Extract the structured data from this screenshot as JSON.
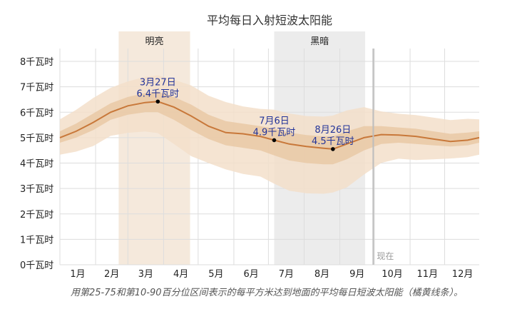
{
  "chart_data": {
    "type": "area",
    "title": "平均每日入射短波太阳能",
    "caption": "用第25-75和第10-90百分位区间表示的每平方米达到地面的平均每日短波太阳能（橘黄线条）。",
    "y_unit_suffix": "千瓦时",
    "ylim": [
      0,
      8
    ],
    "y_ticks": [
      {
        "value": 0,
        "label": "0千瓦时"
      },
      {
        "value": 1,
        "label": "1千瓦时"
      },
      {
        "value": 2,
        "label": "2千瓦时"
      },
      {
        "value": 3,
        "label": "3千瓦时"
      },
      {
        "value": 4,
        "label": "4千瓦时"
      },
      {
        "value": 5,
        "label": "5千瓦时"
      },
      {
        "value": 6,
        "label": "6千瓦时"
      },
      {
        "value": 7,
        "label": "7千瓦时"
      },
      {
        "value": 8,
        "label": "8千瓦时"
      }
    ],
    "x_range_days": [
      1,
      365
    ],
    "months": [
      {
        "label": "1月",
        "start_day": 1
      },
      {
        "label": "2月",
        "start_day": 32
      },
      {
        "label": "3月",
        "start_day": 60
      },
      {
        "label": "4月",
        "start_day": 91
      },
      {
        "label": "5月",
        "start_day": 121
      },
      {
        "label": "6月",
        "start_day": 152
      },
      {
        "label": "7月",
        "start_day": 182
      },
      {
        "label": "8月",
        "start_day": 213
      },
      {
        "label": "9月",
        "start_day": 244
      },
      {
        "label": "10月",
        "start_day": 274
      },
      {
        "label": "11月",
        "start_day": 305
      },
      {
        "label": "12月",
        "start_day": 335
      }
    ],
    "periods": [
      {
        "label": "明亮",
        "start_day": 52,
        "end_day": 114,
        "color": "#f5e9dc"
      },
      {
        "label": "黑暗",
        "start_day": 187,
        "end_day": 266,
        "color": "#ececec"
      }
    ],
    "now": {
      "label": "现在",
      "day": 273
    },
    "series": {
      "x": [
        1,
        15,
        30,
        45,
        60,
        75,
        86,
        100,
        115,
        130,
        145,
        160,
        175,
        187,
        200,
        215,
        230,
        238,
        250,
        265,
        280,
        295,
        310,
        325,
        340,
        355,
        365
      ],
      "mean": [
        5.0,
        5.25,
        5.6,
        6.0,
        6.25,
        6.38,
        6.42,
        6.2,
        5.85,
        5.45,
        5.2,
        5.15,
        5.05,
        4.9,
        4.75,
        4.65,
        4.58,
        4.55,
        4.75,
        5.0,
        5.12,
        5.1,
        5.05,
        4.95,
        4.85,
        4.9,
        5.0
      ],
      "p25": [
        4.8,
        5.0,
        5.3,
        5.7,
        5.9,
        6.0,
        6.0,
        5.7,
        5.3,
        4.95,
        4.7,
        4.6,
        4.5,
        4.3,
        4.1,
        4.0,
        3.95,
        3.95,
        4.15,
        4.5,
        4.75,
        4.8,
        4.75,
        4.7,
        4.65,
        4.7,
        4.8
      ],
      "p75": [
        5.25,
        5.55,
        5.95,
        6.35,
        6.6,
        6.75,
        6.8,
        6.6,
        6.3,
        5.9,
        5.65,
        5.55,
        5.45,
        5.35,
        5.2,
        5.1,
        5.05,
        5.05,
        5.25,
        5.45,
        5.45,
        5.4,
        5.35,
        5.25,
        5.15,
        5.2,
        5.25
      ]
    },
    "annotations": [
      {
        "day": 86,
        "value": 6.42,
        "line1": "3月27日",
        "line2": "6.4千瓦时"
      },
      {
        "day": 187,
        "value": 4.9,
        "line1": "7月6日",
        "line2": "4.9千瓦时"
      },
      {
        "day": 238,
        "value": 4.55,
        "line1": "8月26日",
        "line2": "4.5千瓦时"
      }
    ],
    "colors": {
      "line": "#c8783a",
      "band_inner": "#e9c9a6",
      "band_outer": "#f3dfca",
      "dot": "#000000",
      "grid": "#dddddd",
      "now_line": "#bdbdbd"
    }
  }
}
